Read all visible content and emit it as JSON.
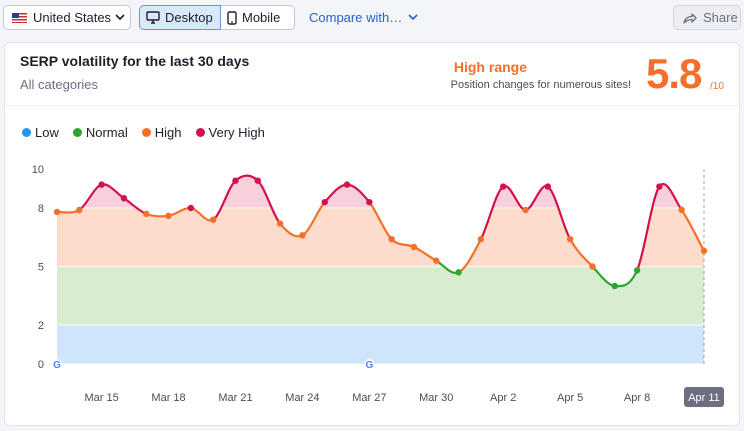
{
  "toolbar": {
    "country": "United States",
    "desktop": "Desktop",
    "mobile": "Mobile",
    "compare": "Compare with…",
    "share": "Share"
  },
  "header": {
    "title": "SERP volatility for the last 30 days",
    "subtitle": "All categories",
    "range_label": "High range",
    "range_desc": "Position changes for numerous sites!",
    "score": "5.8",
    "scale": "/10"
  },
  "legend": [
    {
      "label": "Low",
      "color": "#2196f3"
    },
    {
      "label": "Normal",
      "color": "#2ea52e"
    },
    {
      "label": "High",
      "color": "#f4702a"
    },
    {
      "label": "Very High",
      "color": "#d3114b"
    }
  ],
  "chart_data": {
    "type": "line",
    "title": "SERP volatility for the last 30 days",
    "ylim": [
      0,
      10
    ],
    "y_ticks": [
      0,
      2,
      5,
      8,
      10
    ],
    "bands": [
      {
        "name": "Low",
        "from": 0,
        "to": 2,
        "color": "#cfe5fb"
      },
      {
        "name": "Normal",
        "from": 2,
        "to": 5,
        "color": "#d8ecd2"
      },
      {
        "name": "High",
        "from": 5,
        "to": 8,
        "color": "#fddccc"
      },
      {
        "name": "Very High",
        "from": 8,
        "to": 10,
        "color": "#f8d0dc"
      }
    ],
    "x": [
      "Mar 13",
      "Mar 14",
      "Mar 15",
      "Mar 16",
      "Mar 17",
      "Mar 18",
      "Mar 19",
      "Mar 20",
      "Mar 21",
      "Mar 22",
      "Mar 23",
      "Mar 24",
      "Mar 25",
      "Mar 26",
      "Mar 27",
      "Mar 28",
      "Mar 29",
      "Mar 30",
      "Mar 31",
      "Apr 1",
      "Apr 2",
      "Apr 3",
      "Apr 4",
      "Apr 5",
      "Apr 6",
      "Apr 7",
      "Apr 8",
      "Apr 9",
      "Apr 10",
      "Apr 11"
    ],
    "values": [
      7.8,
      7.9,
      9.2,
      8.5,
      7.7,
      7.6,
      8.0,
      7.4,
      9.4,
      9.4,
      7.2,
      6.6,
      8.3,
      9.2,
      8.3,
      6.4,
      6.0,
      5.3,
      4.7,
      6.4,
      9.1,
      7.9,
      9.1,
      6.4,
      5.0,
      4.0,
      4.8,
      9.1,
      7.9,
      5.8
    ],
    "x_tick_labels": [
      "Mar 15",
      "Mar 18",
      "Mar 21",
      "Mar 24",
      "Mar 27",
      "Mar 30",
      "Apr 2",
      "Apr 5",
      "Apr 8",
      "Apr 11"
    ],
    "google_markers": [
      "Mar 13",
      "Mar 27"
    ],
    "highlighted": "Apr 11"
  }
}
